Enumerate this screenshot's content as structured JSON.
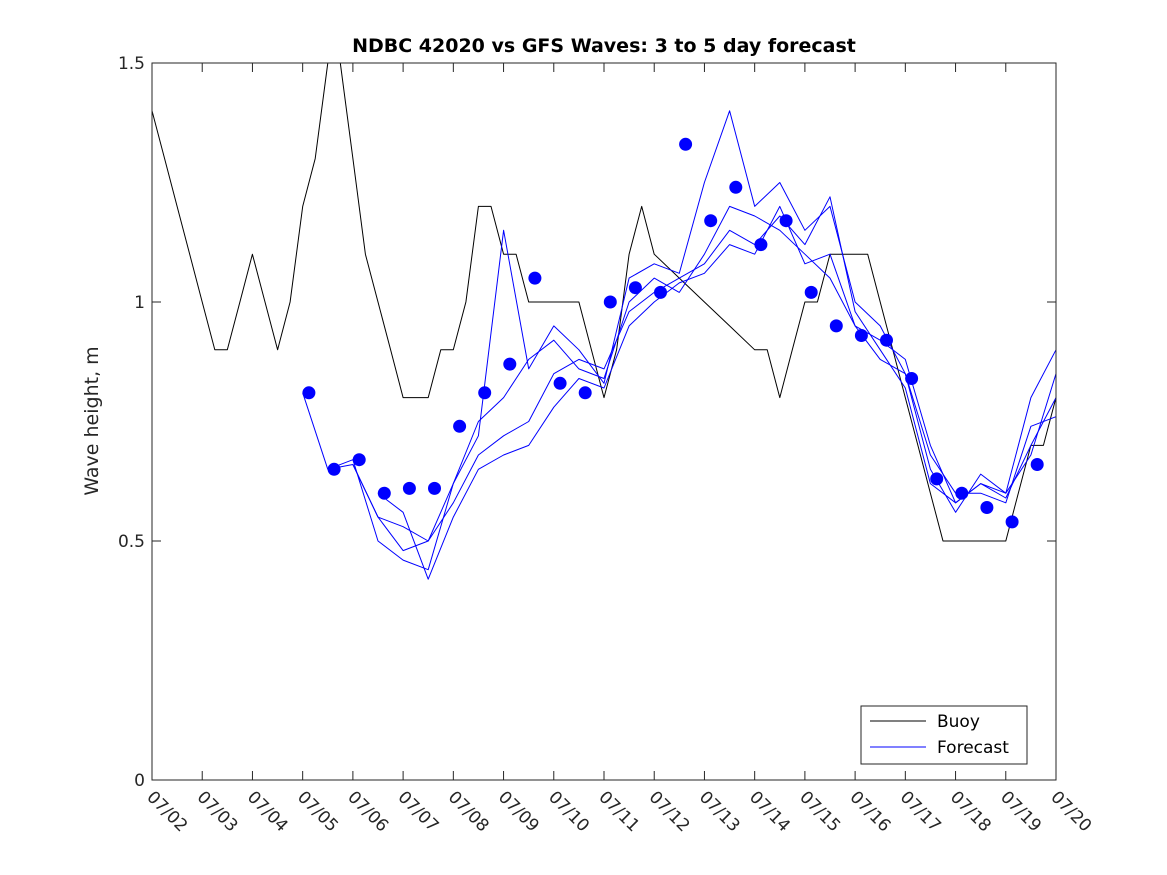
{
  "chart_data": {
    "type": "line",
    "title": "NDBC 42020 vs GFS Waves: 3 to 5 day forecast",
    "xlabel": "",
    "ylabel": "Wave height, m",
    "xlim": [
      "07/02",
      "07/20"
    ],
    "ylim": [
      0,
      1.5
    ],
    "x_tick_labels": [
      "07/02",
      "07/03",
      "07/04",
      "07/05",
      "07/06",
      "07/07",
      "07/08",
      "07/09",
      "07/10",
      "07/11",
      "07/12",
      "07/13",
      "07/14",
      "07/15",
      "07/16",
      "07/17",
      "07/18",
      "07/19",
      "07/20"
    ],
    "y_tick_labels": [
      "0",
      "0.5",
      "1",
      "1.5"
    ],
    "y_ticks": [
      0,
      0.5,
      1,
      1.5
    ],
    "legend": {
      "location": "bottom-right",
      "entries": [
        "Buoy",
        "Forecast"
      ]
    },
    "colors": {
      "buoy": "#000000",
      "forecast": "#0000ff",
      "markers": "#0000ff"
    },
    "grid": false,
    "series": [
      {
        "name": "Buoy",
        "x": [
          "07/02 00:00",
          "07/02 06:00",
          "07/02 12:00",
          "07/02 18:00",
          "07/03 00:00",
          "07/03 06:00",
          "07/03 12:00",
          "07/03 18:00",
          "07/04 00:00",
          "07/04 06:00",
          "07/04 12:00",
          "07/04 18:00",
          "07/05 00:00",
          "07/05 06:00",
          "07/05 12:00",
          "07/05 18:00",
          "07/06 00:00",
          "07/06 06:00",
          "07/06 12:00",
          "07/06 18:00",
          "07/07 00:00",
          "07/07 06:00",
          "07/07 12:00",
          "07/07 18:00",
          "07/08 00:00",
          "07/08 06:00",
          "07/08 12:00",
          "07/08 18:00",
          "07/09 00:00",
          "07/09 06:00",
          "07/09 12:00",
          "07/09 18:00",
          "07/10 00:00",
          "07/10 06:00",
          "07/10 12:00",
          "07/10 18:00",
          "07/11 00:00",
          "07/11 06:00",
          "07/11 12:00",
          "07/11 18:00",
          "07/12 00:00",
          "07/12 12:00",
          "07/13 00:00",
          "07/13 12:00",
          "07/14 00:00",
          "07/14 06:00",
          "07/14 12:00",
          "07/14 18:00",
          "07/15 00:00",
          "07/15 06:00",
          "07/15 12:00",
          "07/15 18:00",
          "07/16 00:00",
          "07/16 06:00",
          "07/16 12:00",
          "07/16 18:00",
          "07/17 00:00",
          "07/17 06:00",
          "07/17 12:00",
          "07/17 18:00",
          "07/18 00:00",
          "07/18 06:00",
          "07/18 12:00",
          "07/18 18:00",
          "07/19 00:00",
          "07/19 06:00",
          "07/19 12:00",
          "07/19 18:00",
          "07/20 00:00"
        ],
        "values": [
          1.4,
          1.3,
          1.2,
          1.1,
          1.0,
          0.9,
          0.9,
          1.0,
          1.1,
          1.0,
          0.9,
          1.0,
          1.2,
          1.3,
          1.5,
          1.5,
          1.3,
          1.1,
          1.0,
          0.9,
          0.8,
          0.8,
          0.8,
          0.9,
          0.9,
          1.0,
          1.2,
          1.2,
          1.1,
          1.1,
          1.0,
          1.0,
          1.0,
          1.0,
          1.0,
          0.9,
          0.8,
          0.9,
          1.1,
          1.2,
          1.1,
          1.05,
          1.0,
          0.95,
          0.9,
          0.9,
          0.8,
          0.9,
          1.0,
          1.0,
          1.1,
          1.1,
          1.1,
          1.1,
          1.0,
          0.9,
          0.8,
          0.7,
          0.6,
          0.5,
          0.5,
          0.5,
          0.5,
          0.5,
          0.5,
          0.6,
          0.7,
          0.7,
          0.8
        ]
      },
      {
        "name": "Forecast",
        "x": [
          "07/05 00:00",
          "07/05 12:00",
          "07/06 00:00",
          "07/06 12:00",
          "07/07 00:00",
          "07/07 12:00",
          "07/08 00:00",
          "07/08 12:00",
          "07/09 00:00",
          "07/09 12:00",
          "07/10 00:00",
          "07/10 12:00",
          "07/11 00:00",
          "07/11 12:00",
          "07/12 00:00",
          "07/12 12:00",
          "07/13 00:00",
          "07/13 12:00",
          "07/14 00:00",
          "07/14 12:00",
          "07/15 00:00",
          "07/15 12:00",
          "07/16 00:00",
          "07/16 12:00",
          "07/17 00:00",
          "07/17 12:00",
          "07/18 00:00",
          "07/18 12:00",
          "07/19 00:00",
          "07/19 12:00",
          "07/20 00:00"
        ],
        "values": [
          0.81,
          0.65,
          0.66,
          0.55,
          0.48,
          0.5,
          0.62,
          0.75,
          0.8,
          0.88,
          0.92,
          0.86,
          0.84,
          1.0,
          1.05,
          1.02,
          1.1,
          1.2,
          1.18,
          1.15,
          1.1,
          1.05,
          0.95,
          0.92,
          0.88,
          0.7,
          0.58,
          0.62,
          0.6,
          0.68,
          0.85
        ]
      },
      {
        "name": "Forecast",
        "x": [
          "07/05 12:00",
          "07/06 00:00",
          "07/06 12:00",
          "07/07 00:00",
          "07/07 12:00",
          "07/08 00:00",
          "07/08 12:00",
          "07/09 00:00",
          "07/09 12:00",
          "07/10 00:00",
          "07/10 12:00",
          "07/11 00:00",
          "07/11 12:00",
          "07/12 00:00",
          "07/12 12:00",
          "07/13 00:00",
          "07/13 12:00",
          "07/14 00:00",
          "07/14 12:00",
          "07/15 00:00",
          "07/15 12:00",
          "07/16 00:00",
          "07/16 12:00",
          "07/17 00:00",
          "07/17 12:00",
          "07/18 00:00",
          "07/18 12:00",
          "07/19 00:00",
          "07/19 12:00",
          "07/20 00:00"
        ],
        "values": [
          0.65,
          0.67,
          0.5,
          0.46,
          0.44,
          0.62,
          0.72,
          1.15,
          0.86,
          0.95,
          0.9,
          0.83,
          1.05,
          1.08,
          1.06,
          1.25,
          1.4,
          1.2,
          1.25,
          1.15,
          1.2,
          1.0,
          0.95,
          0.85,
          0.65,
          0.56,
          0.64,
          0.6,
          0.8,
          0.9
        ]
      },
      {
        "name": "Forecast",
        "x": [
          "07/06 00:00",
          "07/06 12:00",
          "07/07 00:00",
          "07/07 12:00",
          "07/08 00:00",
          "07/08 12:00",
          "07/09 00:00",
          "07/09 12:00",
          "07/10 00:00",
          "07/10 12:00",
          "07/11 00:00",
          "07/11 12:00",
          "07/12 00:00",
          "07/12 12:00",
          "07/13 00:00",
          "07/13 12:00",
          "07/14 00:00",
          "07/14 12:00",
          "07/15 00:00",
          "07/15 12:00",
          "07/16 00:00",
          "07/16 12:00",
          "07/17 00:00",
          "07/17 12:00",
          "07/18 00:00",
          "07/18 12:00",
          "07/19 00:00",
          "07/19 12:00",
          "07/20 00:00"
        ],
        "values": [
          0.66,
          0.55,
          0.53,
          0.5,
          0.58,
          0.68,
          0.72,
          0.75,
          0.85,
          0.88,
          0.86,
          0.98,
          1.02,
          1.05,
          1.08,
          1.15,
          1.12,
          1.18,
          1.12,
          1.22,
          0.98,
          0.9,
          0.82,
          0.62,
          0.58,
          0.62,
          0.59,
          0.7,
          0.8
        ]
      },
      {
        "name": "Forecast",
        "x": [
          "07/06 12:00",
          "07/07 00:00",
          "07/07 12:00",
          "07/08 00:00",
          "07/08 12:00",
          "07/09 00:00",
          "07/09 12:00",
          "07/10 00:00",
          "07/10 12:00",
          "07/11 00:00",
          "07/11 12:00",
          "07/12 00:00",
          "07/12 12:00",
          "07/13 00:00",
          "07/13 12:00",
          "07/14 00:00",
          "07/14 12:00",
          "07/15 00:00",
          "07/15 12:00",
          "07/16 00:00",
          "07/16 12:00",
          "07/17 00:00",
          "07/17 12:00",
          "07/18 00:00",
          "07/18 12:00",
          "07/19 00:00",
          "07/19 12:00",
          "07/20 00:00"
        ],
        "values": [
          0.6,
          0.56,
          0.42,
          0.55,
          0.65,
          0.68,
          0.7,
          0.78,
          0.84,
          0.82,
          0.95,
          1.0,
          1.04,
          1.06,
          1.12,
          1.1,
          1.2,
          1.08,
          1.1,
          0.95,
          0.88,
          0.85,
          0.68,
          0.6,
          0.6,
          0.58,
          0.74,
          0.76
        ]
      }
    ],
    "markers": {
      "x": [
        "07/05 03:00",
        "07/05 15:00",
        "07/06 03:00",
        "07/06 15:00",
        "07/07 03:00",
        "07/07 15:00",
        "07/08 03:00",
        "07/08 15:00",
        "07/09 03:00",
        "07/09 15:00",
        "07/10 03:00",
        "07/10 15:00",
        "07/11 03:00",
        "07/11 15:00",
        "07/12 03:00",
        "07/12 15:00",
        "07/13 03:00",
        "07/13 15:00",
        "07/14 03:00",
        "07/14 15:00",
        "07/15 03:00",
        "07/15 15:00",
        "07/16 03:00",
        "07/16 15:00",
        "07/17 03:00",
        "07/17 15:00",
        "07/18 03:00",
        "07/18 15:00",
        "07/19 03:00",
        "07/19 15:00"
      ],
      "values": [
        0.81,
        0.65,
        0.67,
        0.6,
        0.61,
        0.61,
        0.74,
        0.81,
        0.87,
        1.05,
        0.83,
        0.81,
        1.0,
        1.03,
        1.02,
        1.33,
        1.17,
        1.24,
        1.12,
        1.17,
        1.02,
        0.95,
        0.93,
        0.92,
        0.84,
        0.63,
        0.6,
        0.57,
        0.54,
        0.66
      ]
    }
  }
}
